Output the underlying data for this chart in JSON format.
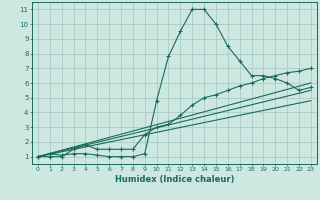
{
  "xlabel": "Humidex (Indice chaleur)",
  "ylabel": "",
  "xlim": [
    -0.5,
    23.5
  ],
  "ylim": [
    0.5,
    11.5
  ],
  "xticks": [
    0,
    1,
    2,
    3,
    4,
    5,
    6,
    7,
    8,
    9,
    10,
    11,
    12,
    13,
    14,
    15,
    16,
    17,
    18,
    19,
    20,
    21,
    22,
    23
  ],
  "yticks": [
    1,
    2,
    3,
    4,
    5,
    6,
    7,
    8,
    9,
    10,
    11
  ],
  "bg_color": "#cce8e0",
  "grid_color": "#aaccc4",
  "line_color": "#1a6a5a",
  "line1_x": [
    0,
    1,
    2,
    3,
    4,
    5,
    6,
    7,
    8,
    9,
    10,
    11,
    12,
    13,
    14,
    15,
    16,
    17,
    18,
    19,
    20,
    21,
    22,
    23
  ],
  "line1_y": [
    1.0,
    1.2,
    1.1,
    1.2,
    1.2,
    1.1,
    1.0,
    1.0,
    1.0,
    1.2,
    4.8,
    7.8,
    9.5,
    11.0,
    11.0,
    10.0,
    8.5,
    7.5,
    6.5,
    6.5,
    6.3,
    6.0,
    5.5,
    5.7
  ],
  "line2_x": [
    0,
    1,
    2,
    3,
    4,
    5,
    6,
    7,
    8,
    9,
    10,
    11,
    12,
    13,
    14,
    15,
    16,
    17,
    18,
    19,
    20,
    21,
    22,
    23
  ],
  "line2_y": [
    1.0,
    1.0,
    1.0,
    1.5,
    1.8,
    1.5,
    1.5,
    1.5,
    1.5,
    2.5,
    3.0,
    3.2,
    3.8,
    4.5,
    5.0,
    5.2,
    5.5,
    5.8,
    6.0,
    6.3,
    6.5,
    6.7,
    6.8,
    7.0
  ],
  "line3_x": [
    0,
    23
  ],
  "line3_y": [
    1.0,
    6.0
  ],
  "line4_x": [
    0,
    23
  ],
  "line4_y": [
    1.0,
    5.5
  ],
  "line5_x": [
    0,
    23
  ],
  "line5_y": [
    1.0,
    4.8
  ]
}
